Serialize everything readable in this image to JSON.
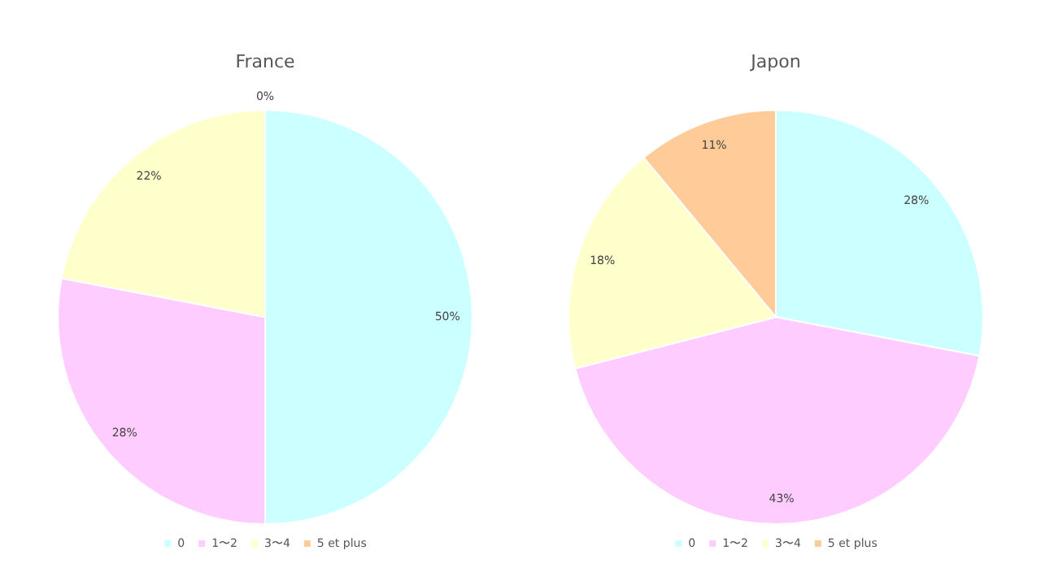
{
  "chart_data": [
    {
      "type": "pie",
      "title": "France",
      "categories": [
        "0",
        "1〜2",
        "3〜4",
        "5 et plus"
      ],
      "values": [
        50,
        28,
        22,
        0
      ],
      "value_labels": [
        "50%",
        "28%",
        "22%",
        "0%"
      ],
      "colors": [
        "#ccffff",
        "#ffccff",
        "#ffffcc",
        "#ffcc99"
      ],
      "legend": "bottom"
    },
    {
      "type": "pie",
      "title": "Japon",
      "categories": [
        "0",
        "1〜2",
        "3〜4",
        "5 et plus"
      ],
      "values": [
        28,
        43,
        18,
        11
      ],
      "value_labels": [
        "28%",
        "43%",
        "18%",
        "11%"
      ],
      "colors": [
        "#ccffff",
        "#ffccff",
        "#ffffcc",
        "#ffcc99"
      ],
      "legend": "bottom"
    }
  ]
}
